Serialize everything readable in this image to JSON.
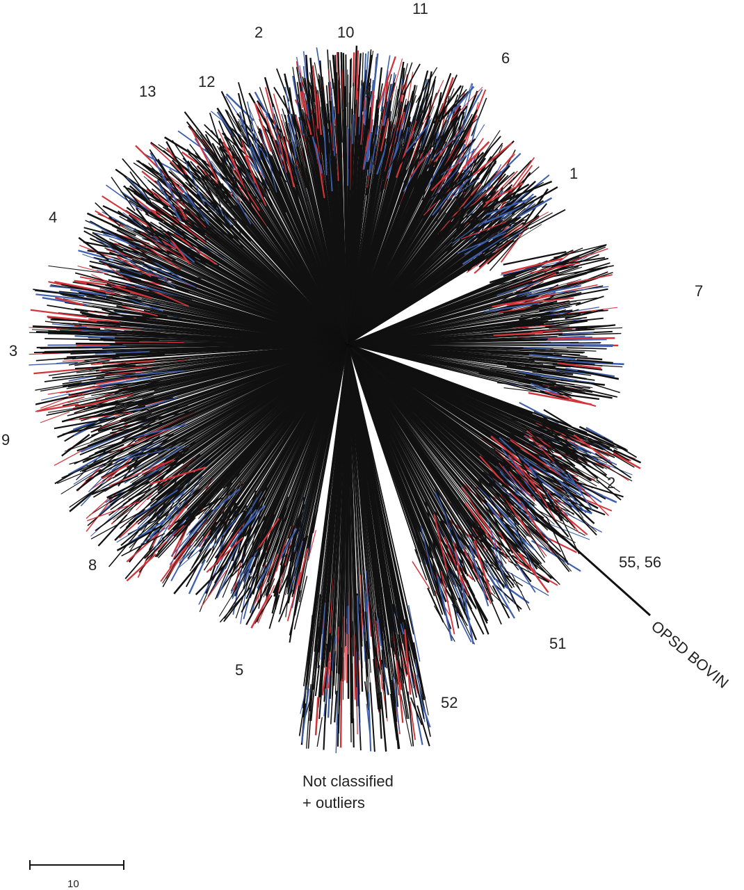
{
  "colors": {
    "black": "#111111",
    "red": "#d3343a",
    "blue": "#3d5fae"
  },
  "clade_labels": {
    "c1": "1",
    "c2_top": "2",
    "c2_right": "2",
    "c3": "3",
    "c4": "4",
    "c5": "5",
    "c6": "6",
    "c7": "7",
    "c8": "8",
    "c9": "9",
    "c10": "10",
    "c11": "11",
    "c12": "12",
    "c13": "13",
    "c51": "51",
    "c52": "52",
    "c55_56": "55, 56",
    "opsd": "OPSD BOVIN"
  },
  "unclassified": {
    "line1": "Not classified",
    "line2": "+ outliers"
  },
  "scale_bar": {
    "label": "10"
  }
}
